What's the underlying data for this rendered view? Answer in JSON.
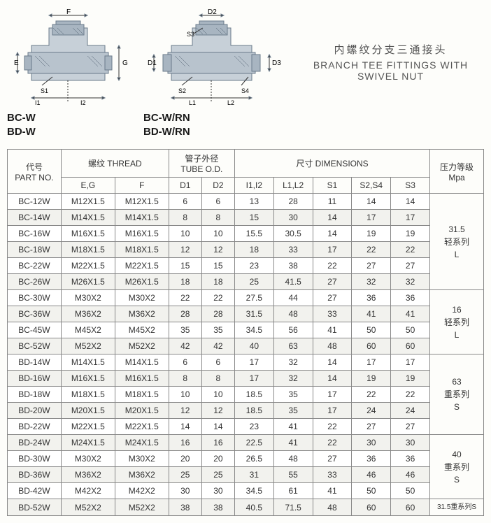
{
  "title_cn": "内螺纹分支三通接头",
  "title_en1": "BRANCH TEE FITTINGS WITH",
  "title_en2": "SWIVEL NUT",
  "diag1_line1": "BC-W",
  "diag1_line2": "BD-W",
  "diag2_line1": "BC-W/RN",
  "diag2_line2": "BD-W/RN",
  "headers": {
    "part_cn": "代号",
    "part_en": "PART NO.",
    "thread_cn": "螺纹 THREAD",
    "tube_cn": "管子外径",
    "tube_en": "TUBE O.D.",
    "dim_cn": "尺寸 DIMENSIONS",
    "press_cn": "压力等级",
    "press_en": "Mpa",
    "eg": "E,G",
    "f": "F",
    "d1": "D1",
    "d2": "D2",
    "i12": "I1,I2",
    "l12": "L1,L2",
    "s1": "S1",
    "s24": "S2,S4",
    "s3": "S3"
  },
  "rows": [
    {
      "p": "BC-12W",
      "eg": "M12X1.5",
      "f": "M12X1.5",
      "d1": "6",
      "d2": "6",
      "i": "13",
      "l": "28",
      "s1": "11",
      "s2": "14",
      "s3": "14"
    },
    {
      "p": "BC-14W",
      "eg": "M14X1.5",
      "f": "M14X1.5",
      "d1": "8",
      "d2": "8",
      "i": "15",
      "l": "30",
      "s1": "14",
      "s2": "17",
      "s3": "17"
    },
    {
      "p": "BC-16W",
      "eg": "M16X1.5",
      "f": "M16X1.5",
      "d1": "10",
      "d2": "10",
      "i": "15.5",
      "l": "30.5",
      "s1": "14",
      "s2": "19",
      "s3": "19"
    },
    {
      "p": "BC-18W",
      "eg": "M18X1.5",
      "f": "M18X1.5",
      "d1": "12",
      "d2": "12",
      "i": "18",
      "l": "33",
      "s1": "17",
      "s2": "22",
      "s3": "22"
    },
    {
      "p": "BC-22W",
      "eg": "M22X1.5",
      "f": "M22X1.5",
      "d1": "15",
      "d2": "15",
      "i": "23",
      "l": "38",
      "s1": "22",
      "s2": "27",
      "s3": "27"
    },
    {
      "p": "BC-26W",
      "eg": "M26X1.5",
      "f": "M26X1.5",
      "d1": "18",
      "d2": "18",
      "i": "25",
      "l": "41.5",
      "s1": "27",
      "s2": "32",
      "s3": "32"
    },
    {
      "p": "BC-30W",
      "eg": "M30X2",
      "f": "M30X2",
      "d1": "22",
      "d2": "22",
      "i": "27.5",
      "l": "44",
      "s1": "27",
      "s2": "36",
      "s3": "36"
    },
    {
      "p": "BC-36W",
      "eg": "M36X2",
      "f": "M36X2",
      "d1": "28",
      "d2": "28",
      "i": "31.5",
      "l": "48",
      "s1": "33",
      "s2": "41",
      "s3": "41"
    },
    {
      "p": "BC-45W",
      "eg": "M45X2",
      "f": "M45X2",
      "d1": "35",
      "d2": "35",
      "i": "34.5",
      "l": "56",
      "s1": "41",
      "s2": "50",
      "s3": "50"
    },
    {
      "p": "BC-52W",
      "eg": "M52X2",
      "f": "M52X2",
      "d1": "42",
      "d2": "42",
      "i": "40",
      "l": "63",
      "s1": "48",
      "s2": "60",
      "s3": "60"
    },
    {
      "p": "BD-14W",
      "eg": "M14X1.5",
      "f": "M14X1.5",
      "d1": "6",
      "d2": "6",
      "i": "17",
      "l": "32",
      "s1": "14",
      "s2": "17",
      "s3": "17"
    },
    {
      "p": "BD-16W",
      "eg": "M16X1.5",
      "f": "M16X1.5",
      "d1": "8",
      "d2": "8",
      "i": "17",
      "l": "32",
      "s1": "14",
      "s2": "19",
      "s3": "19"
    },
    {
      "p": "BD-18W",
      "eg": "M18X1.5",
      "f": "M18X1.5",
      "d1": "10",
      "d2": "10",
      "i": "18.5",
      "l": "35",
      "s1": "17",
      "s2": "22",
      "s3": "22"
    },
    {
      "p": "BD-20W",
      "eg": "M20X1.5",
      "f": "M20X1.5",
      "d1": "12",
      "d2": "12",
      "i": "18.5",
      "l": "35",
      "s1": "17",
      "s2": "24",
      "s3": "24"
    },
    {
      "p": "BD-22W",
      "eg": "M22X1.5",
      "f": "M22X1.5",
      "d1": "14",
      "d2": "14",
      "i": "23",
      "l": "41",
      "s1": "22",
      "s2": "27",
      "s3": "27"
    },
    {
      "p": "BD-24W",
      "eg": "M24X1.5",
      "f": "M24X1.5",
      "d1": "16",
      "d2": "16",
      "i": "22.5",
      "l": "41",
      "s1": "22",
      "s2": "30",
      "s3": "30"
    },
    {
      "p": "BD-30W",
      "eg": "M30X2",
      "f": "M30X2",
      "d1": "20",
      "d2": "20",
      "i": "26.5",
      "l": "48",
      "s1": "27",
      "s2": "36",
      "s3": "36"
    },
    {
      "p": "BD-36W",
      "eg": "M36X2",
      "f": "M36X2",
      "d1": "25",
      "d2": "25",
      "i": "31",
      "l": "55",
      "s1": "33",
      "s2": "46",
      "s3": "46"
    },
    {
      "p": "BD-42W",
      "eg": "M42X2",
      "f": "M42X2",
      "d1": "30",
      "d2": "30",
      "i": "34.5",
      "l": "61",
      "s1": "41",
      "s2": "50",
      "s3": "50"
    },
    {
      "p": "BD-52W",
      "eg": "M52X2",
      "f": "M52X2",
      "d1": "38",
      "d2": "38",
      "i": "40.5",
      "l": "71.5",
      "s1": "48",
      "s2": "60",
      "s3": "60"
    }
  ],
  "pressure": [
    {
      "span": 6,
      "l1": "31.5",
      "l2": "轻系列",
      "l3": "L"
    },
    {
      "span": 4,
      "l1": "16",
      "l2": "轻系列",
      "l3": "L"
    },
    {
      "span": 5,
      "l1": "63",
      "l2": "重系列",
      "l3": "S"
    },
    {
      "span": 4,
      "l1": "40",
      "l2": "重系列",
      "l3": "S"
    },
    {
      "span": 1,
      "l1": "31.5重系列S",
      "l2": "",
      "l3": ""
    }
  ],
  "diagram_labels": {
    "d1_E": "E",
    "d1_F": "F",
    "d1_G": "G",
    "d1_S1": "S1",
    "d1_I1": "I1",
    "d1_I2": "I2",
    "d2_D1": "D1",
    "d2_D2": "D2",
    "d2_D3": "D3",
    "d2_L1": "L1",
    "d2_L2": "L2",
    "d2_S2": "S2",
    "d2_S3": "S3",
    "d2_S4": "S4"
  }
}
